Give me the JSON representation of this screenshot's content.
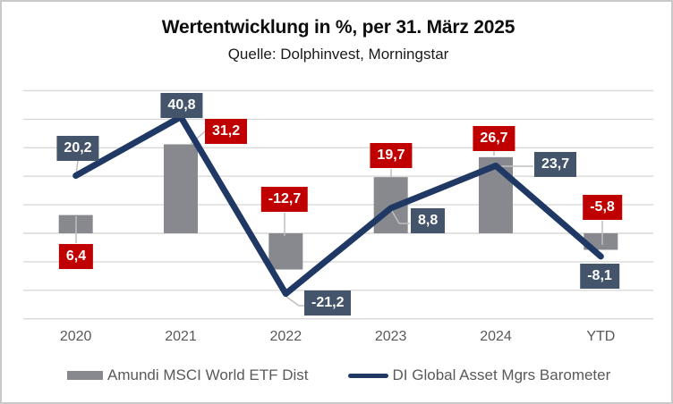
{
  "header": {
    "title": "Wertentwicklung in %, per 31. März 2025",
    "subtitle": "Quelle: Dolphinvest, Morningstar"
  },
  "chart_data": {
    "type": "combo",
    "title": "Wertentwicklung in %, per 31. März 2025",
    "subtitle": "Quelle: Dolphinvest, Morningstar",
    "categories": [
      "2020",
      "2021",
      "2022",
      "2023",
      "2024",
      "YTD"
    ],
    "series": [
      {
        "name": "Amundi MSCI World ETF Dist",
        "type": "bar",
        "color": "#87898F",
        "label_bg": "#C00000",
        "values": [
          6.4,
          31.2,
          -12.7,
          19.7,
          26.7,
          -5.8
        ],
        "labels": [
          "6,4",
          "31,2",
          "-12,7",
          "19,7",
          "26,7",
          "-5,8"
        ]
      },
      {
        "name": "DI Global Asset Mgrs Barometer",
        "type": "line",
        "color": "#1F3864",
        "label_bg": "#44546A",
        "values": [
          20.2,
          40.8,
          -21.2,
          8.8,
          23.7,
          -8.1
        ],
        "labels": [
          "20,2",
          "40,8",
          "-21,2",
          "8,8",
          "23,7",
          "-8,1"
        ]
      }
    ],
    "ylim": [
      -30,
      50
    ],
    "grid_step": 10,
    "grid_on": true,
    "grid_color": "#D9D9D9",
    "leader_color": "#BFBFBF",
    "axis_text_color": "#595959",
    "legend_position": "bottom",
    "xlabel": "",
    "ylabel": ""
  }
}
